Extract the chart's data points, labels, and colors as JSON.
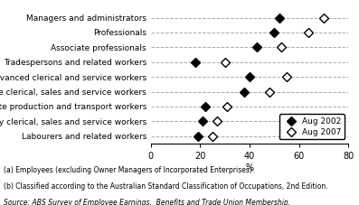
{
  "categories": [
    "Managers and administrators",
    "Professionals",
    "Associate professionals",
    "Tradespersons and related workers",
    "Advanced clerical and service workers",
    "Intermediate clerical, sales and service workers",
    "Intermediate production and transport workers",
    "Elementary clerical, sales and service workers",
    "Labourers and related workers"
  ],
  "aug2002": [
    52,
    50,
    43,
    18,
    40,
    38,
    22,
    21,
    19
  ],
  "aug2007": [
    70,
    64,
    53,
    30,
    55,
    48,
    31,
    27,
    25
  ],
  "xlim": [
    0,
    80
  ],
  "xticks": [
    0,
    20,
    40,
    60,
    80
  ],
  "xlabel": "%",
  "footnote1": "(a) Employees (excluding Owner Managers of Incorporated Enterprises).",
  "footnote2": "(b) Classified according to the Australian Standard Classification of Occupations, 2nd Edition.",
  "source": "Source: ABS Survey of Employee Earnings,  Benefits and Trade Union Membership.",
  "legend_2002": "Aug 2002",
  "legend_2007": "Aug 2007",
  "bg_color": "#ffffff",
  "grid_color": "#aaaaaa",
  "marker_filled": "o",
  "marker_open": "o",
  "marker_size": 6
}
